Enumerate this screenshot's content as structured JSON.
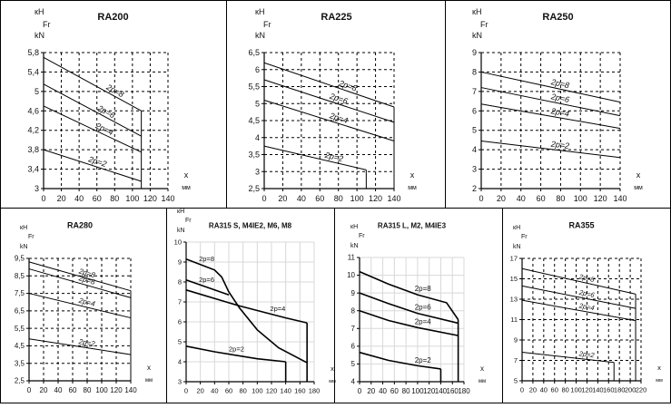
{
  "chart_data": [
    {
      "type": "line",
      "title": "RA200",
      "units_top": "кН",
      "units_mid": "Fr",
      "units_bottom": "kN",
      "xlabel": "x",
      "xunit": "мм",
      "xlim": [
        0,
        140
      ],
      "xticks": [
        0,
        20,
        40,
        60,
        80,
        100,
        120,
        140
      ],
      "ylim": [
        3,
        5.8
      ],
      "yticks": [
        "3",
        "3,4",
        "3,8",
        "4,2",
        "4,6",
        "5",
        "5,4",
        "5,8"
      ],
      "grid": "dashed",
      "series": [
        {
          "name": "2p=8",
          "label_x": 70,
          "points": [
            [
              0,
              5.7
            ],
            [
              110,
              4.6
            ]
          ]
        },
        {
          "name": "2p=6",
          "label_x": 60,
          "points": [
            [
              0,
              5.15
            ],
            [
              110,
              4.08
            ]
          ]
        },
        {
          "name": "2p=4",
          "label_x": 58,
          "points": [
            [
              0,
              4.7
            ],
            [
              110,
              3.75
            ]
          ]
        },
        {
          "name": "2p=2",
          "label_x": 50,
          "points": [
            [
              0,
              3.8
            ],
            [
              110,
              3.15
            ]
          ]
        }
      ],
      "verticals": [
        [
          110,
          4.6
        ]
      ]
    },
    {
      "type": "line",
      "title": "RA225",
      "units_top": "кН",
      "units_mid": "Fr",
      "units_bottom": "kN",
      "xlabel": "x",
      "xunit": "мм",
      "xlim": [
        0,
        140
      ],
      "xticks": [
        0,
        20,
        40,
        60,
        80,
        100,
        120,
        140
      ],
      "ylim": [
        2.5,
        6.5
      ],
      "yticks": [
        "2,5",
        "3",
        "3,5",
        "4",
        "4,5",
        "5",
        "5,5",
        "6",
        "6,5"
      ],
      "grid": "dashed",
      "series": [
        {
          "name": "2p=8",
          "label_x": 80,
          "points": [
            [
              0,
              6.2
            ],
            [
              140,
              4.9
            ]
          ]
        },
        {
          "name": "2p=6",
          "label_x": 70,
          "points": [
            [
              0,
              5.7
            ],
            [
              140,
              4.45
            ]
          ]
        },
        {
          "name": "2p=4",
          "label_x": 70,
          "points": [
            [
              0,
              5.1
            ],
            [
              140,
              3.9
            ]
          ]
        },
        {
          "name": "2p=2",
          "label_x": 65,
          "points": [
            [
              0,
              3.75
            ],
            [
              110,
              3.05
            ]
          ]
        }
      ],
      "verticals": [
        [
          110,
          3.05
        ],
        [
          140,
          4.9
        ]
      ]
    },
    {
      "type": "line",
      "title": "RA250",
      "units_top": "кН",
      "units_mid": "Fr",
      "units_bottom": "kN",
      "xlabel": "x",
      "xunit": "мм",
      "xlim": [
        0,
        140
      ],
      "xticks": [
        0,
        20,
        40,
        60,
        80,
        100,
        120,
        140
      ],
      "ylim": [
        2,
        9
      ],
      "yticks": [
        "2",
        "3",
        "4",
        "5",
        "6",
        "7",
        "8",
        "9"
      ],
      "grid": "dashed",
      "series": [
        {
          "name": "2p=8",
          "label_x": 70,
          "points": [
            [
              0,
              8.0
            ],
            [
              140,
              6.45
            ]
          ]
        },
        {
          "name": "2p=6",
          "label_x": 70,
          "points": [
            [
              0,
              7.2
            ],
            [
              140,
              5.75
            ]
          ]
        },
        {
          "name": "2p=4",
          "label_x": 70,
          "points": [
            [
              0,
              6.35
            ],
            [
              140,
              5.1
            ]
          ]
        },
        {
          "name": "2p=2",
          "label_x": 70,
          "points": [
            [
              0,
              4.45
            ],
            [
              140,
              3.6
            ]
          ]
        }
      ],
      "verticals": []
    },
    {
      "type": "line",
      "title": "RA280",
      "units_top": "кН",
      "units_mid": "Fr",
      "units_bottom": "kN",
      "xlabel": "x",
      "xunit": "мм",
      "xlim": [
        0,
        140
      ],
      "xticks": [
        0,
        20,
        40,
        60,
        80,
        100,
        120,
        140
      ],
      "ylim": [
        2.5,
        9.5
      ],
      "yticks": [
        "2,5",
        "3,5",
        "4,5",
        "5,5",
        "6,5",
        "7,5",
        "8,5",
        "9,5"
      ],
      "grid": "dashed",
      "series": [
        {
          "name": "2p=8",
          "label_x": 68,
          "points": [
            [
              0,
              9.3
            ],
            [
              140,
              7.65
            ]
          ]
        },
        {
          "name": "2p=6",
          "label_x": 68,
          "points": [
            [
              0,
              8.9
            ],
            [
              140,
              7.25
            ]
          ]
        },
        {
          "name": "2p=4",
          "label_x": 68,
          "points": [
            [
              0,
              7.5
            ],
            [
              140,
              6.1
            ]
          ]
        },
        {
          "name": "2p=2",
          "label_x": 68,
          "points": [
            [
              0,
              4.9
            ],
            [
              140,
              4.0
            ]
          ]
        }
      ],
      "verticals": [
        [
          140,
          7.65
        ]
      ]
    },
    {
      "type": "line",
      "title": "RA315 S, M4IE2, M6, M8",
      "units_top": "кН",
      "units_mid": "Fr",
      "units_bottom": "kN",
      "xlabel": "x",
      "xunit": "мм",
      "xlim": [
        0,
        180
      ],
      "xticks": [
        0,
        20,
        40,
        60,
        80,
        100,
        120,
        140,
        160,
        180
      ],
      "ylim": [
        3,
        10
      ],
      "yticks": [
        "3",
        "4",
        "5",
        "6",
        "7",
        "8",
        "9",
        "10"
      ],
      "grid": "solid",
      "series": [
        {
          "name": "2p=8",
          "label_x": 18,
          "points": [
            [
              0,
              9.15
            ],
            [
              40,
              8.6
            ],
            [
              50,
              8.25
            ],
            [
              60,
              7.5
            ],
            [
              75,
              6.7
            ],
            [
              100,
              5.6
            ],
            [
              130,
              4.7
            ],
            [
              170,
              3.95
            ]
          ]
        },
        {
          "name": "2p=6",
          "label_x": 18,
          "points": [
            [
              0,
              8.1
            ],
            [
              60,
              7.35
            ]
          ]
        },
        {
          "name": "2p=4",
          "label_x": 118,
          "points": [
            [
              0,
              7.6
            ],
            [
              75,
              6.8
            ],
            [
              140,
              6.2
            ],
            [
              170,
              5.95
            ]
          ]
        },
        {
          "name": "2p=2",
          "label_x": 60,
          "points": [
            [
              0,
              4.78
            ],
            [
              40,
              4.5
            ],
            [
              100,
              4.15
            ],
            [
              140,
              4.0
            ]
          ]
        }
      ],
      "verticals": [
        [
          140,
          4.0
        ],
        [
          170,
          5.95
        ]
      ]
    },
    {
      "type": "line",
      "title": "RA315 L, M2, M4IE3",
      "units_top": "кН",
      "units_mid": "Fr",
      "units_bottom": "kN",
      "xlabel": "x",
      "xunit": "мм",
      "xlim": [
        0,
        180
      ],
      "xticks": [
        0,
        20,
        40,
        60,
        80,
        100,
        120,
        140,
        160,
        180
      ],
      "ylim": [
        4,
        11
      ],
      "yticks": [
        "4",
        "5",
        "6",
        "7",
        "8",
        "9",
        "10",
        "11"
      ],
      "grid": "solid",
      "series": [
        {
          "name": "2p=8",
          "label_x": 95,
          "points": [
            [
              0,
              10.2
            ],
            [
              50,
              9.5
            ],
            [
              100,
              8.9
            ],
            [
              150,
              8.45
            ],
            [
              170,
              7.5
            ]
          ]
        },
        {
          "name": "2p=6",
          "label_x": 95,
          "points": [
            [
              0,
              9.0
            ],
            [
              50,
              8.4
            ],
            [
              100,
              7.85
            ],
            [
              170,
              7.3
            ]
          ]
        },
        {
          "name": "2p=4",
          "label_x": 95,
          "points": [
            [
              0,
              8.0
            ],
            [
              50,
              7.45
            ],
            [
              100,
              7.05
            ],
            [
              170,
              6.6
            ]
          ]
        },
        {
          "name": "2p=2",
          "label_x": 95,
          "points": [
            [
              0,
              5.65
            ],
            [
              50,
              5.2
            ],
            [
              100,
              4.9
            ],
            [
              140,
              4.72
            ]
          ]
        }
      ],
      "verticals": [
        [
          140,
          4.72
        ],
        [
          170,
          7.5
        ]
      ]
    },
    {
      "type": "line",
      "title": "RA355",
      "units_top": "кН",
      "units_mid": "Fr",
      "units_bottom": "kN",
      "xlabel": "x",
      "xunit": "мм",
      "xlim": [
        0,
        220
      ],
      "xticks": [
        0,
        20,
        40,
        60,
        80,
        100,
        120,
        140,
        160,
        180,
        200,
        220
      ],
      "ylim": [
        5,
        17
      ],
      "yticks": [
        "5",
        "7",
        "9",
        "11",
        "13",
        "15",
        "17"
      ],
      "grid": "dashed",
      "series": [
        {
          "name": "2p=8",
          "label_x": 105,
          "points": [
            [
              0,
              16.0
            ],
            [
              210,
              13.5
            ]
          ]
        },
        {
          "name": "2p=6",
          "label_x": 105,
          "points": [
            [
              0,
              14.3
            ],
            [
              210,
              12.1
            ]
          ]
        },
        {
          "name": "2p=4",
          "label_x": 105,
          "points": [
            [
              0,
              12.9
            ],
            [
              210,
              10.9
            ]
          ]
        },
        {
          "name": "2p=2",
          "label_x": 105,
          "points": [
            [
              0,
              7.8
            ],
            [
              170,
              6.8
            ]
          ]
        }
      ],
      "verticals": [
        [
          170,
          6.8
        ],
        [
          210,
          13.5
        ]
      ]
    }
  ]
}
